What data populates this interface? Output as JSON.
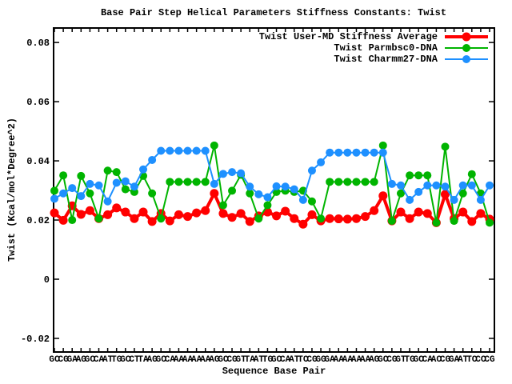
{
  "title": "Base Pair Step Helical Parameters Stiffness Constants: Twist",
  "axes": {
    "x_label": "Sequence Base Pair",
    "y_label": "Twist (Kcal/mol*Degree^2)"
  },
  "colors": {
    "background": "#ffffff",
    "axis": "#000000",
    "series_red": "#ff0000",
    "series_green": "#00b400",
    "series_blue": "#1e90ff"
  },
  "chart_data": {
    "type": "line",
    "title": "Base Pair Step Helical Parameters Stiffness Constants: Twist",
    "xlabel": "Sequence Base Pair",
    "ylabel": "Twist (Kcal/mol*Degree^2)",
    "ylim": [
      -0.0246,
      0.0849
    ],
    "yticks": [
      -0.02,
      0,
      0.02,
      0.04,
      0.06,
      0.08
    ],
    "ytick_labels": [
      "-0.02",
      "0",
      "0.02",
      "0.04",
      "0.06",
      "0.08"
    ],
    "grid": false,
    "legend_position": "top-right-inside",
    "sequence": "GCGAGCATGCTAGCAAAAAGCGTATGCATCGGAAAAAGCGTGCACGATCCG",
    "categories": [
      "GC",
      "CG",
      "GA",
      "AG",
      "GC",
      "CA",
      "AT",
      "TG",
      "GC",
      "CT",
      "TA",
      "AG",
      "GC",
      "CA",
      "AA",
      "AA",
      "AA",
      "AA",
      "AG",
      "GC",
      "CG",
      "GT",
      "TA",
      "AT",
      "TG",
      "GC",
      "CA",
      "AT",
      "TC",
      "CG",
      "GG",
      "GA",
      "AA",
      "AA",
      "AA",
      "AA",
      "AG",
      "GC",
      "CG",
      "GT",
      "TG",
      "GC",
      "CA",
      "AC",
      "CG",
      "GA",
      "AT",
      "TC",
      "CC",
      "CG"
    ],
    "series": [
      {
        "name": "Twist User-MD Stiffness Average",
        "color": "#ff0000",
        "line_width": 4,
        "marker_radius": 5.5,
        "values": [
          0.0224,
          0.0199,
          0.0248,
          0.0219,
          0.0232,
          0.0205,
          0.0218,
          0.0241,
          0.0227,
          0.0205,
          0.0227,
          0.0195,
          0.0222,
          0.0197,
          0.0218,
          0.0212,
          0.0224,
          0.0232,
          0.029,
          0.0222,
          0.0209,
          0.0222,
          0.0195,
          0.0214,
          0.0227,
          0.0214,
          0.023,
          0.0205,
          0.0186,
          0.0218,
          0.0197,
          0.0205,
          0.0204,
          0.0203,
          0.0205,
          0.0212,
          0.0232,
          0.0282,
          0.0197,
          0.0227,
          0.0205,
          0.0227,
          0.0222,
          0.0191,
          0.0287,
          0.0205,
          0.0227,
          0.0195,
          0.0222,
          0.0203
        ]
      },
      {
        "name": "Twist Parmbsc0-DNA",
        "color": "#00b400",
        "line_width": 2,
        "marker_radius": 5,
        "values": [
          0.0299,
          0.0351,
          0.02,
          0.0349,
          0.029,
          0.0205,
          0.0367,
          0.0362,
          0.0304,
          0.0295,
          0.0349,
          0.029,
          0.0205,
          0.0329,
          0.0329,
          0.0329,
          0.0329,
          0.0329,
          0.0452,
          0.025,
          0.0299,
          0.0353,
          0.029,
          0.0205,
          0.025,
          0.0295,
          0.0299,
          0.0295,
          0.0299,
          0.0263,
          0.0205,
          0.0329,
          0.0329,
          0.0329,
          0.0329,
          0.0329,
          0.0329,
          0.0452,
          0.0197,
          0.029,
          0.0351,
          0.0351,
          0.0351,
          0.0191,
          0.0448,
          0.0197,
          0.029,
          0.0355,
          0.029,
          0.0191
        ]
      },
      {
        "name": "Twist Charmm27-DNA",
        "color": "#1e90ff",
        "line_width": 2,
        "marker_radius": 5,
        "values": [
          0.0272,
          0.029,
          0.0308,
          0.0281,
          0.0322,
          0.0317,
          0.0263,
          0.0326,
          0.0331,
          0.0313,
          0.0371,
          0.0403,
          0.0434,
          0.0434,
          0.0434,
          0.0434,
          0.0434,
          0.0434,
          0.0322,
          0.0356,
          0.0362,
          0.0358,
          0.0313,
          0.0287,
          0.0277,
          0.0314,
          0.0313,
          0.0304,
          0.0268,
          0.0367,
          0.0395,
          0.0428,
          0.0428,
          0.0428,
          0.0428,
          0.0428,
          0.0428,
          0.0428,
          0.0322,
          0.0317,
          0.0268,
          0.0295,
          0.0317,
          0.0317,
          0.0313,
          0.0268,
          0.0317,
          0.0317,
          0.0268,
          0.0317
        ]
      }
    ]
  }
}
